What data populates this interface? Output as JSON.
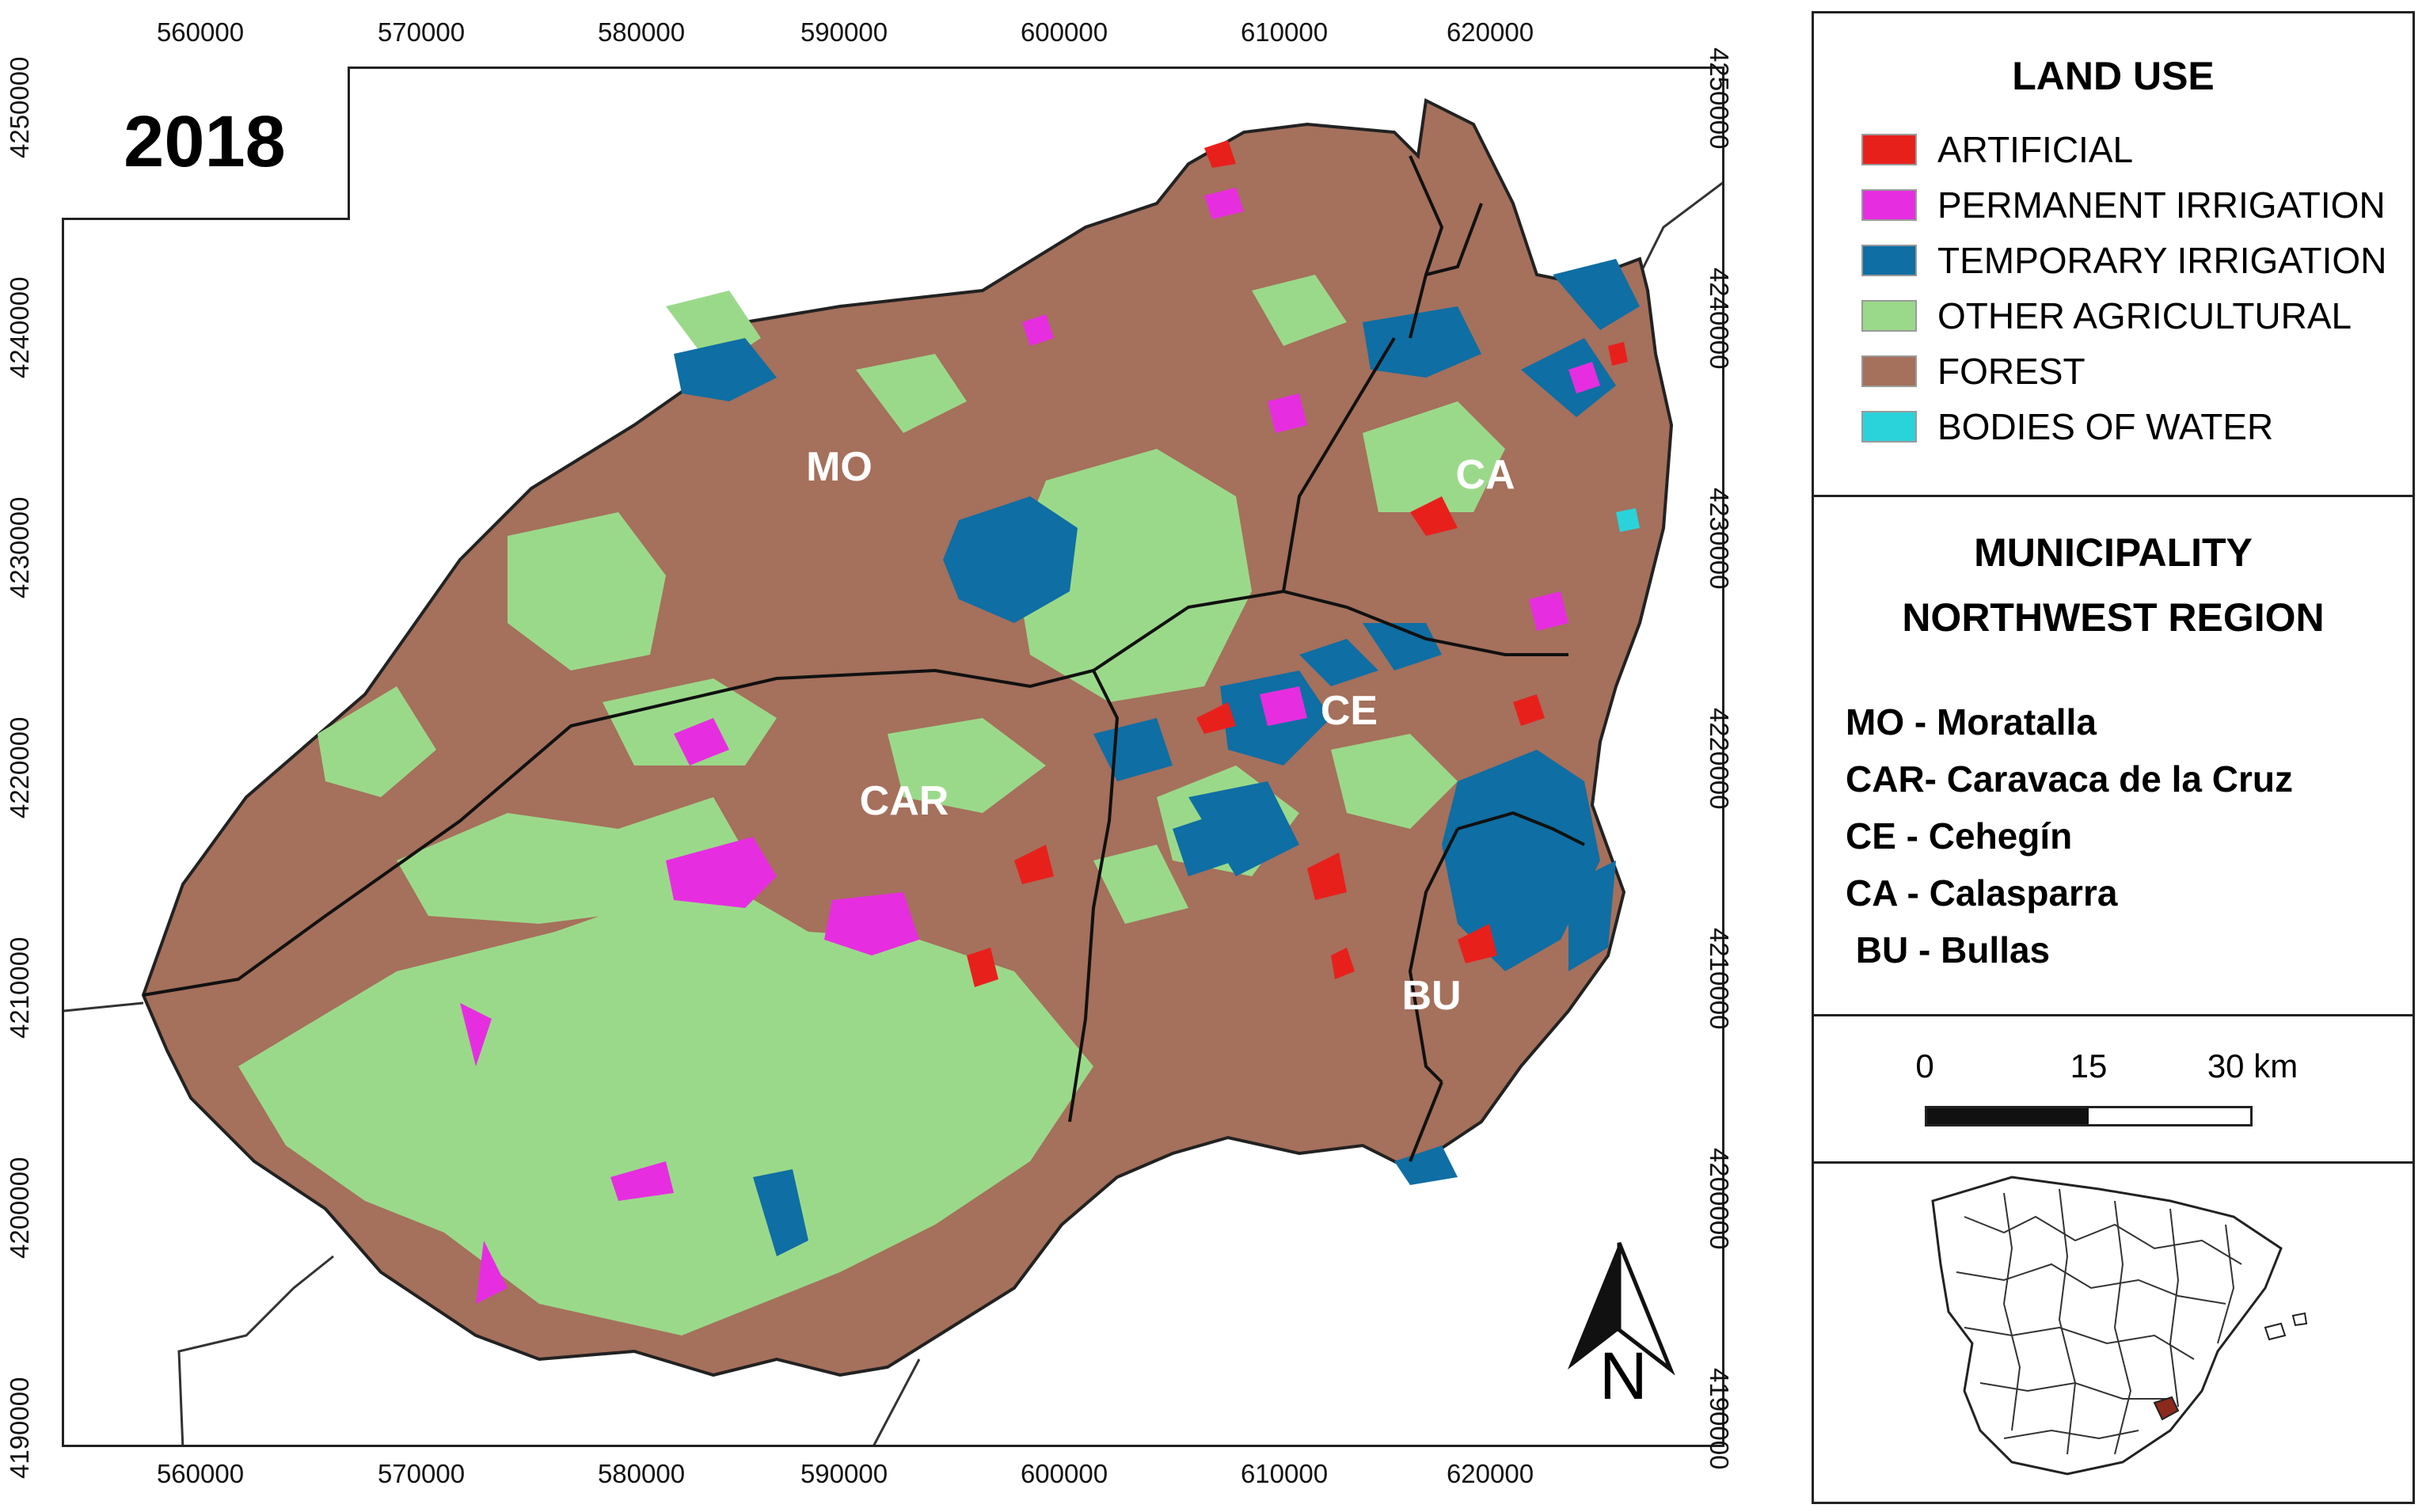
{
  "map": {
    "year": "2018",
    "x_ticks": [
      "560000",
      "570000",
      "580000",
      "590000",
      "600000",
      "610000",
      "620000"
    ],
    "y_ticks": [
      "4250000",
      "4240000",
      "4230000",
      "4220000",
      "4210000",
      "4200000",
      "4190000"
    ],
    "municipality_labels": [
      "MO",
      "CAR",
      "CE",
      "CA",
      "BU"
    ],
    "north_label": "N"
  },
  "legend": {
    "title": "LAND USE",
    "items": [
      {
        "label": "ARTIFICIAL",
        "color": "#e8201c"
      },
      {
        "label": "PERMANENT IRRIGATION",
        "color": "#e62ee0"
      },
      {
        "label": "TEMPORARY IRRIGATION",
        "color": "#0f6ea3"
      },
      {
        "label": "OTHER AGRICULTURAL",
        "color": "#9bd98a"
      },
      {
        "label": "FOREST",
        "color": "#a5705c"
      },
      {
        "label": "BODIES OF WATER",
        "color": "#2ad3d9"
      }
    ]
  },
  "municipality_panel": {
    "heading_line1": "MUNICIPALITY",
    "heading_line2": "NORTHWEST REGION",
    "entries": [
      "MO - Moratalla",
      "CAR- Caravaca de la Cruz",
      "CE - Cehegín",
      "CA - Calasparra",
      " BU - Bullas"
    ]
  },
  "scale": {
    "labels": [
      "0",
      "15",
      "30 km"
    ]
  },
  "colors": {
    "forest": "#a5705c",
    "agricultural": "#9bd98a",
    "temporary_irrigation": "#0f6ea3",
    "permanent_irrigation": "#e62ee0",
    "artificial": "#e8201c",
    "water": "#2ad3d9",
    "inset_highlight": "#8b2a1c"
  }
}
